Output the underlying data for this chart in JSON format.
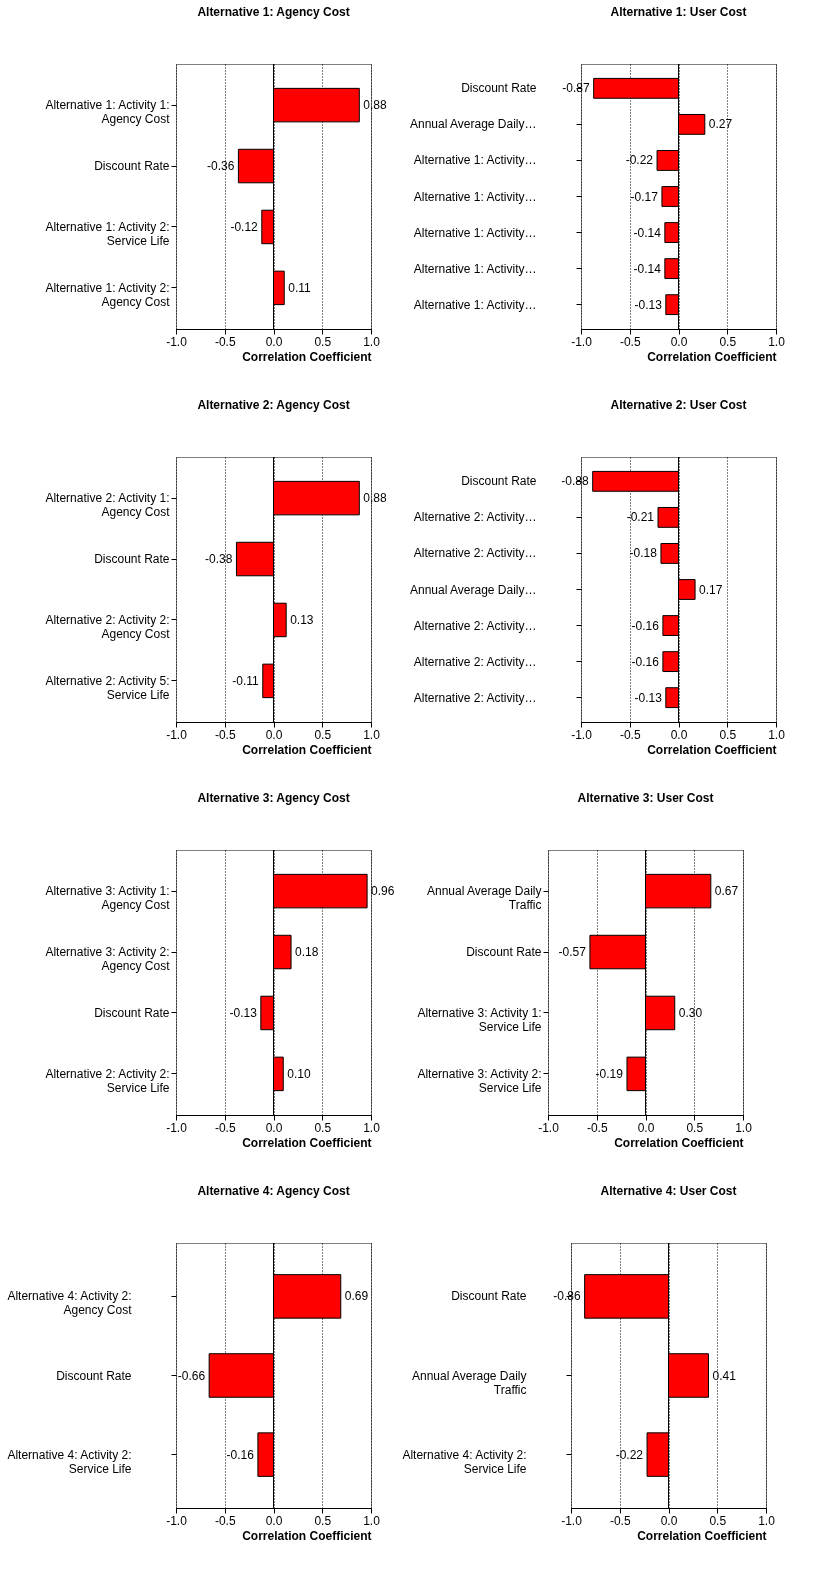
{
  "chart_data": [
    {
      "type": "bar",
      "orientation": "horizontal",
      "title": "Alternative 1: Agency Cost",
      "xlabel": "Correlation Coefficient",
      "categories": [
        "Alternative 1: Activity 1: Agency Cost",
        "Discount Rate",
        "Alternative 1: Activity 2: Service Life",
        "Alternative 1: Activity 2: Agency Cost"
      ],
      "values": [
        0.88,
        -0.36,
        -0.12,
        0.11
      ],
      "value_labels": [
        "0.88",
        "-0.36",
        "-0.12",
        "0.11"
      ],
      "color": "#ff0000",
      "xlim": [
        -1,
        1
      ],
      "xticks": [
        {
          "value": -1,
          "label": "-1.0"
        },
        {
          "value": -0.5,
          "label": "-0.5"
        },
        {
          "value": 0,
          "label": "0.0"
        },
        {
          "value": 0.5,
          "label": "0.5"
        },
        {
          "value": 1,
          "label": "1.0"
        }
      ],
      "grid": "x",
      "ref_lines": [
        {
          "axis": "x",
          "value": 0,
          "color": "#000000"
        }
      ]
    },
    {
      "type": "bar",
      "orientation": "horizontal",
      "title": "Alternative 1: User Cost",
      "xlabel": "Correlation Coefficient",
      "categories": [
        "Discount Rate",
        "Annual Average Daily…",
        "Alternative 1: Activity…",
        "Alternative 1: Activity…",
        "Alternative 1: Activity…",
        "Alternative 1: Activity…",
        "Alternative 1: Activity…"
      ],
      "values": [
        -0.87,
        0.27,
        -0.22,
        -0.17,
        -0.14,
        -0.14,
        -0.13
      ],
      "value_labels": [
        "-0.87",
        "0.27",
        "-0.22",
        "-0.17",
        "-0.14",
        "-0.14",
        "-0.13"
      ],
      "color": "#ff0000",
      "xlim": [
        -1,
        1
      ],
      "xticks": [
        {
          "value": -1,
          "label": "-1.0"
        },
        {
          "value": -0.5,
          "label": "-0.5"
        },
        {
          "value": 0,
          "label": "0.0"
        },
        {
          "value": 0.5,
          "label": "0.5"
        },
        {
          "value": 1,
          "label": "1.0"
        }
      ],
      "grid": "x",
      "ref_lines": [
        {
          "axis": "x",
          "value": 0,
          "color": "#000000"
        }
      ]
    },
    {
      "type": "bar",
      "orientation": "horizontal",
      "title": "Alternative 2: Agency Cost",
      "xlabel": "Correlation Coefficient",
      "categories": [
        "Alternative 2: Activity 1: Agency Cost",
        "Discount Rate",
        "Alternative 2: Activity 2: Agency Cost",
        "Alternative 2: Activity 5: Service Life"
      ],
      "values": [
        0.88,
        -0.38,
        0.13,
        -0.11
      ],
      "value_labels": [
        "0.88",
        "-0.38",
        "0.13",
        "-0.11"
      ],
      "color": "#ff0000",
      "xlim": [
        -1,
        1
      ],
      "xticks": [
        {
          "value": -1,
          "label": "-1.0"
        },
        {
          "value": -0.5,
          "label": "-0.5"
        },
        {
          "value": 0,
          "label": "0.0"
        },
        {
          "value": 0.5,
          "label": "0.5"
        },
        {
          "value": 1,
          "label": "1.0"
        }
      ],
      "grid": "x",
      "ref_lines": [
        {
          "axis": "x",
          "value": 0,
          "color": "#000000"
        }
      ]
    },
    {
      "type": "bar",
      "orientation": "horizontal",
      "title": "Alternative 2: User Cost",
      "xlabel": "Correlation Coefficient",
      "categories": [
        "Discount Rate",
        "Alternative 2: Activity…",
        "Alternative 2: Activity…",
        "Annual Average Daily…",
        "Alternative 2: Activity…",
        "Alternative 2: Activity…",
        "Alternative 2: Activity…"
      ],
      "values": [
        -0.88,
        -0.21,
        -0.18,
        0.17,
        -0.16,
        -0.16,
        -0.13
      ],
      "value_labels": [
        "-0.88",
        "-0.21",
        "-0.18",
        "0.17",
        "-0.16",
        "-0.16",
        "-0.13"
      ],
      "color": "#ff0000",
      "xlim": [
        -1,
        1
      ],
      "xticks": [
        {
          "value": -1,
          "label": "-1.0"
        },
        {
          "value": -0.5,
          "label": "-0.5"
        },
        {
          "value": 0,
          "label": "0.0"
        },
        {
          "value": 0.5,
          "label": "0.5"
        },
        {
          "value": 1,
          "label": "1.0"
        }
      ],
      "grid": "x",
      "ref_lines": [
        {
          "axis": "x",
          "value": 0,
          "color": "#000000"
        }
      ]
    },
    {
      "type": "bar",
      "orientation": "horizontal",
      "title": "Alternative 3: Agency Cost",
      "xlabel": "Correlation Coefficient",
      "categories": [
        "Alternative 3: Activity 1: Agency Cost",
        "Alternative 3: Activity 2: Agency Cost",
        "Discount Rate",
        "Alternative 2: Activity 2: Service Life"
      ],
      "values": [
        0.96,
        0.18,
        -0.13,
        0.1
      ],
      "value_labels": [
        "0.96",
        "0.18",
        "-0.13",
        "0.10"
      ],
      "color": "#ff0000",
      "xlim": [
        -1,
        1
      ],
      "xticks": [
        {
          "value": -1,
          "label": "-1.0"
        },
        {
          "value": -0.5,
          "label": "-0.5"
        },
        {
          "value": 0,
          "label": "0.0"
        },
        {
          "value": 0.5,
          "label": "0.5"
        },
        {
          "value": 1,
          "label": "1.0"
        }
      ],
      "grid": "x",
      "ref_lines": [
        {
          "axis": "x",
          "value": 0,
          "color": "#000000"
        }
      ]
    },
    {
      "type": "bar",
      "orientation": "horizontal",
      "title": "Alternative 3: User Cost",
      "xlabel": "Correlation Coefficient",
      "categories": [
        "Annual Average Daily Traffic",
        "Discount Rate",
        "Alternative 3: Activity 1: Service Life",
        "Alternative 3: Activity 2: Service Life"
      ],
      "values": [
        0.67,
        -0.57,
        0.3,
        -0.19
      ],
      "value_labels": [
        "0.67",
        "-0.57",
        "0.30",
        "-0.19"
      ],
      "color": "#ff0000",
      "xlim": [
        -1,
        1
      ],
      "xticks": [
        {
          "value": -1,
          "label": "-1.0"
        },
        {
          "value": -0.5,
          "label": "-0.5"
        },
        {
          "value": 0,
          "label": "0.0"
        },
        {
          "value": 0.5,
          "label": "0.5"
        },
        {
          "value": 1,
          "label": "1.0"
        }
      ],
      "grid": "x",
      "ref_lines": [
        {
          "axis": "x",
          "value": 0,
          "color": "#000000"
        }
      ]
    },
    {
      "type": "bar",
      "orientation": "horizontal",
      "title": "Alternative 4: Agency Cost",
      "xlabel": "Correlation Coefficient",
      "categories": [
        "Alternative 4: Activity 2: Agency Cost",
        "Discount Rate",
        "Alternative 4: Activity 2: Service Life"
      ],
      "values": [
        0.69,
        -0.66,
        -0.16
      ],
      "value_labels": [
        "0.69",
        "-0.66",
        "-0.16"
      ],
      "color": "#ff0000",
      "xlim": [
        -1,
        1
      ],
      "xticks": [
        {
          "value": -1,
          "label": "-1.0"
        },
        {
          "value": -0.5,
          "label": "-0.5"
        },
        {
          "value": 0,
          "label": "0.0"
        },
        {
          "value": 0.5,
          "label": "0.5"
        },
        {
          "value": 1,
          "label": "1.0"
        }
      ],
      "grid": "x",
      "ref_lines": [
        {
          "axis": "x",
          "value": 0,
          "color": "#000000"
        }
      ]
    },
    {
      "type": "bar",
      "orientation": "horizontal",
      "title": "Alternative 4: User Cost",
      "xlabel": "Correlation Coefficient",
      "categories": [
        "Discount Rate",
        "Annual Average Daily Traffic",
        "Alternative 4: Activity 2: Service Life"
      ],
      "values": [
        -0.86,
        0.41,
        -0.22
      ],
      "value_labels": [
        "-0.86",
        "0.41",
        "-0.22"
      ],
      "color": "#ff0000",
      "xlim": [
        -1,
        1
      ],
      "xticks": [
        {
          "value": -1,
          "label": "-1.0"
        },
        {
          "value": -0.5,
          "label": "-0.5"
        },
        {
          "value": 0,
          "label": "0.0"
        },
        {
          "value": 0.5,
          "label": "0.5"
        },
        {
          "value": 1,
          "label": "1.0"
        }
      ],
      "grid": "x",
      "ref_lines": [
        {
          "axis": "x",
          "value": 0,
          "color": "#000000"
        }
      ]
    }
  ]
}
